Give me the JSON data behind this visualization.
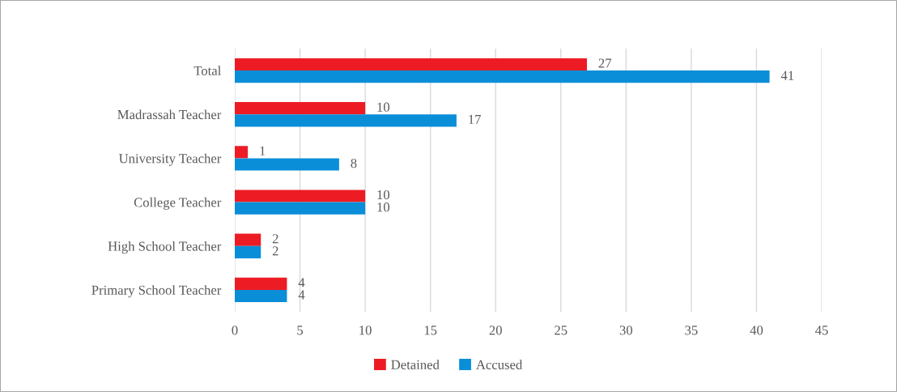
{
  "chart_data": {
    "type": "bar",
    "orientation": "horizontal",
    "categories": [
      "Total",
      "Madrassah Teacher",
      "University Teacher",
      "College Teacher",
      "High School Teacher",
      "Primary School Teacher"
    ],
    "series": [
      {
        "name": "Detained",
        "color": "#ed1c24",
        "values": [
          27,
          10,
          1,
          10,
          2,
          4
        ]
      },
      {
        "name": "Accused",
        "color": "#0a8ed8",
        "values": [
          41,
          17,
          8,
          10,
          2,
          4
        ]
      }
    ],
    "xlim": [
      0,
      45
    ],
    "xticks": [
      0,
      5,
      10,
      15,
      20,
      25,
      30,
      35,
      40,
      45
    ],
    "grid": "x",
    "legend": "bottom",
    "data_labels": true
  }
}
